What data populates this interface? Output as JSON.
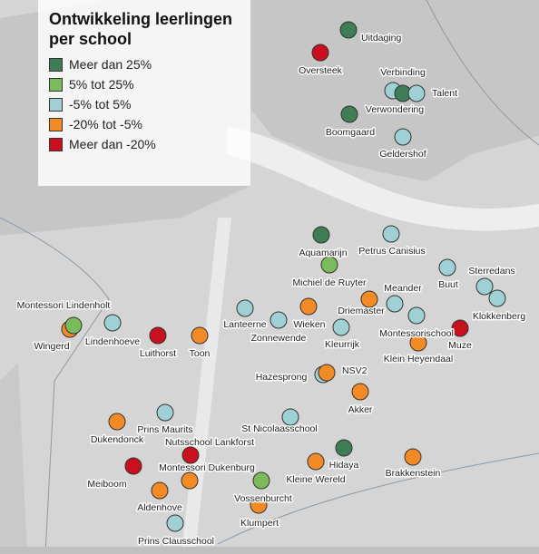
{
  "title": "Ontwikkeling leerlingen per school",
  "legend": [
    {
      "label": "Meer dan 25%",
      "color": "#3f7d57"
    },
    {
      "label": "5% tot 25%",
      "color": "#7cbb5c"
    },
    {
      "label": "-5% tot 5%",
      "color": "#9fd0d4"
    },
    {
      "label": "-20% tot -5%",
      "color": "#f28b25"
    },
    {
      "label": "Meer dan -20%",
      "color": "#c8101f"
    }
  ],
  "schools": [
    {
      "name": "Uitdaging",
      "color": "#3f7d57"
    },
    {
      "name": "Oversteek",
      "color": "#c8101f"
    },
    {
      "name": "Verbinding",
      "color": "#9fd0d4"
    },
    {
      "name": "Verwondering",
      "color": "#3f7d57"
    },
    {
      "name": "Talent",
      "color": "#9fd0d4"
    },
    {
      "name": "Boomgaard",
      "color": "#3f7d57"
    },
    {
      "name": "Geldershof",
      "color": "#9fd0d4"
    },
    {
      "name": "Aquamarijn",
      "color": "#3f7d57"
    },
    {
      "name": "Petrus Canisius",
      "color": "#9fd0d4"
    },
    {
      "name": "Michiel de Ruyter",
      "color": "#7cbb5c"
    },
    {
      "name": "Buut",
      "color": "#9fd0d4"
    },
    {
      "name": "Sterredans",
      "color": "#9fd0d4"
    },
    {
      "name": "Klokkenberg",
      "color": "#9fd0d4"
    },
    {
      "name": "Meander",
      "color": "#9fd0d4"
    },
    {
      "name": "Driemaster",
      "color": "#f28b25"
    },
    {
      "name": "Montessorischool",
      "color": "#9fd0d4"
    },
    {
      "name": "Muze",
      "color": "#c8101f"
    },
    {
      "name": "Klein Heyendaal",
      "color": "#f28b25"
    },
    {
      "name": "Kleurrijk",
      "color": "#9fd0d4"
    },
    {
      "name": "Wieken",
      "color": "#f28b25"
    },
    {
      "name": "Zonnewende",
      "color": "#9fd0d4"
    },
    {
      "name": "Lanteerne",
      "color": "#9fd0d4"
    },
    {
      "name": "Montessori Lindenholt",
      "color": "#f28b25"
    },
    {
      "name": "Wingerd",
      "color": "#7cbb5c"
    },
    {
      "name": "Lindenhoeve",
      "color": "#9fd0d4"
    },
    {
      "name": "Luithorst",
      "color": "#c8101f"
    },
    {
      "name": "Toon",
      "color": "#f28b25"
    },
    {
      "name": "Hazesprong",
      "color": "#9fd0d4"
    },
    {
      "name": "NSV2",
      "color": "#f28b25"
    },
    {
      "name": "Akker",
      "color": "#f28b25"
    },
    {
      "name": "St Nicolaasschool",
      "color": "#9fd0d4"
    },
    {
      "name": "Prins Maurits",
      "color": "#9fd0d4"
    },
    {
      "name": "Dukendonck",
      "color": "#f28b25"
    },
    {
      "name": "Nutsschool Lankforst",
      "color": "#c8101f"
    },
    {
      "name": "Montessori Dukenburg",
      "color": "#f28b25"
    },
    {
      "name": "Meiboom",
      "color": "#c8101f"
    },
    {
      "name": "Aldenhove",
      "color": "#f28b25"
    },
    {
      "name": "Prins Clausschool",
      "color": "#9fd0d4"
    },
    {
      "name": "Hidaya",
      "color": "#3f7d57"
    },
    {
      "name": "Kleine Wereld",
      "color": "#f28b25"
    },
    {
      "name": "Vossenburcht",
      "color": "#7cbb5c"
    },
    {
      "name": "Klumpert",
      "color": "#f28b25"
    },
    {
      "name": "Brakkenstein",
      "color": "#f28b25"
    }
  ]
}
